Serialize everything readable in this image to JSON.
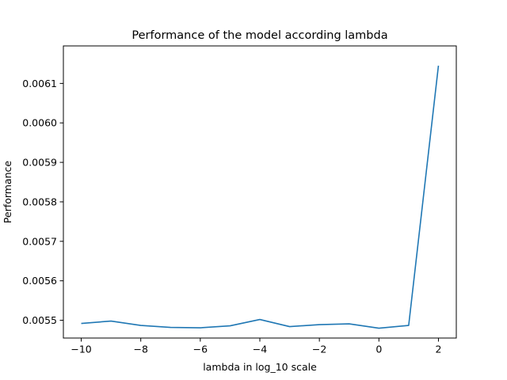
{
  "chart_data": {
    "type": "line",
    "title": "Performance of the model according lambda",
    "xlabel": "lambda in log_10 scale",
    "ylabel": "Performance",
    "xlim": [
      -10.6,
      2.6
    ],
    "ylim": [
      0.005455,
      0.006195
    ],
    "xticks": [
      -10,
      -8,
      -6,
      -4,
      -2,
      0,
      2
    ],
    "xtick_labels": [
      "−10",
      "−8",
      "−6",
      "−4",
      "−2",
      "0",
      "2"
    ],
    "yticks": [
      0.0055,
      0.0056,
      0.0057,
      0.0058,
      0.0059,
      0.006,
      0.0061
    ],
    "ytick_labels": [
      "0.0055",
      "0.0056",
      "0.0057",
      "0.0058",
      "0.0059",
      "0.0060",
      "0.0061"
    ],
    "grid": false,
    "series": [
      {
        "color": "#1f77b4",
        "x": [
          -10,
          -9,
          -8,
          -7,
          -6,
          -5,
          -4,
          -3,
          -2,
          -1,
          0,
          1,
          2
        ],
        "values": [
          0.005492,
          0.005498,
          0.005487,
          0.005482,
          0.005481,
          0.005486,
          0.005502,
          0.005484,
          0.005489,
          0.005491,
          0.00548,
          0.005487,
          0.006145
        ]
      }
    ]
  }
}
